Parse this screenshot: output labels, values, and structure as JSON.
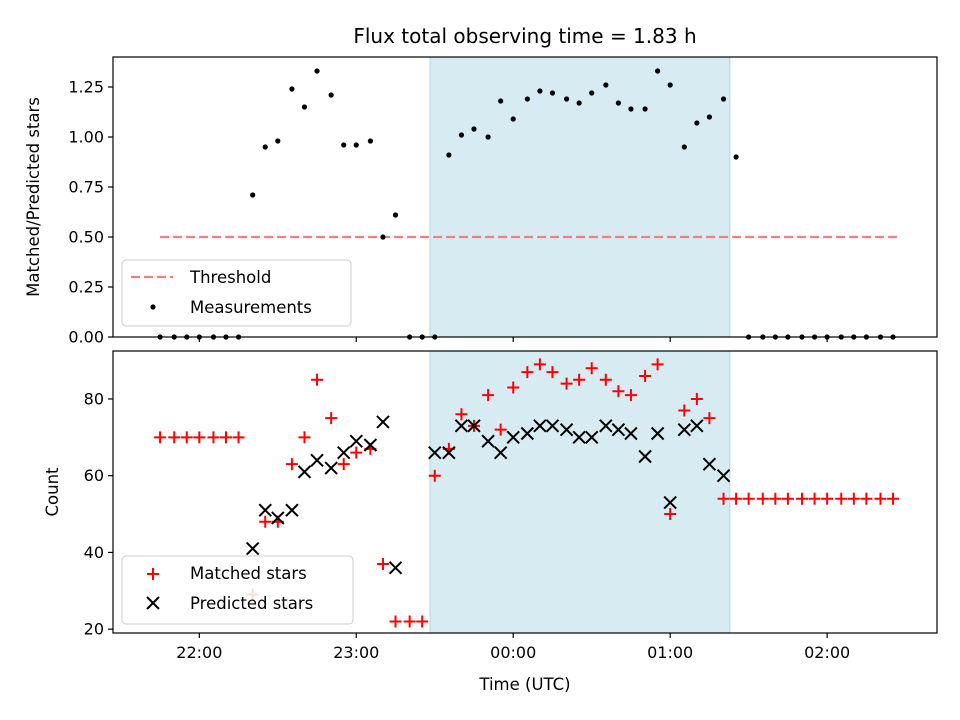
{
  "chart_data": {
    "title": "Flux total observing time = 1.83 h",
    "xlabel": "Time (UTC)",
    "x_unit": "hours UTC (values past 24 are after midnight)",
    "x_tick_labels": [
      "22:00",
      "23:00",
      "00:00",
      "01:00",
      "02:00"
    ],
    "xlim": [
      21.45,
      26.7
    ],
    "observing_window": {
      "start": 23.47,
      "end": 25.38,
      "color": "#add8e6"
    },
    "panels": [
      {
        "type": "scatter",
        "ylabel": "Matched/Predicted stars",
        "ylim": [
          0,
          1.4
        ],
        "y_tick_labels": [
          "0.00",
          "0.25",
          "0.50",
          "0.75",
          "1.00",
          "1.25"
        ],
        "legend_location": "lower-left",
        "threshold": {
          "name": "Threshold",
          "value": 0.5,
          "x_range": [
            21.75,
            26.45
          ],
          "color": "#f08080"
        },
        "series": [
          {
            "name": "Measurements",
            "color": "#000000",
            "marker": "dot",
            "x": [
              21.75,
              21.84,
              21.92,
              22.0,
              22.09,
              22.17,
              22.25,
              22.34,
              22.42,
              22.5,
              22.59,
              22.67,
              22.75,
              22.84,
              22.92,
              23.0,
              23.09,
              23.17,
              23.25,
              23.34,
              23.42,
              23.5,
              23.59,
              23.67,
              23.75,
              23.84,
              23.92,
              24.0,
              24.09,
              24.17,
              24.25,
              24.34,
              24.42,
              24.5,
              24.59,
              24.67,
              24.75,
              24.84,
              24.92,
              25.0,
              25.09,
              25.17,
              25.25,
              25.34,
              25.42,
              25.5,
              25.59,
              25.67,
              25.75,
              25.84,
              25.92,
              26.0,
              26.09,
              26.17,
              26.25,
              26.34,
              26.42
            ],
            "y": [
              0,
              0,
              0,
              0,
              0,
              0,
              0,
              0.71,
              0.95,
              0.98,
              1.24,
              1.15,
              1.33,
              1.21,
              0.96,
              0.96,
              0.98,
              0.5,
              0.61,
              0,
              0,
              0,
              0.91,
              1.01,
              1.04,
              1.0,
              1.18,
              1.09,
              1.19,
              1.23,
              1.22,
              1.19,
              1.17,
              1.22,
              1.26,
              1.17,
              1.14,
              1.14,
              1.33,
              1.26,
              0.95,
              1.07,
              1.1,
              1.19,
              0.9,
              0,
              0,
              0,
              0,
              0,
              0,
              0,
              0,
              0,
              0,
              0,
              0
            ]
          }
        ]
      },
      {
        "type": "scatter",
        "ylabel": "Count",
        "ylim": [
          19,
          92.5
        ],
        "y_tick_labels": [
          "20",
          "40",
          "60",
          "80"
        ],
        "legend_location": "lower-left",
        "series": [
          {
            "name": "Matched stars",
            "color": "#ff0000",
            "marker": "plus",
            "x": [
              21.75,
              21.84,
              21.92,
              22.0,
              22.09,
              22.17,
              22.25,
              22.34,
              22.42,
              22.5,
              22.59,
              22.67,
              22.75,
              22.84,
              22.92,
              23.0,
              23.09,
              23.17,
              23.25,
              23.34,
              23.42,
              23.5,
              23.59,
              23.67,
              23.75,
              23.84,
              23.92,
              24.0,
              24.09,
              24.17,
              24.25,
              24.34,
              24.42,
              24.5,
              24.59,
              24.67,
              24.75,
              24.84,
              24.92,
              25.0,
              25.09,
              25.17,
              25.25,
              25.34,
              25.42,
              25.5,
              25.59,
              25.67,
              25.75,
              25.84,
              25.92,
              26.0,
              26.09,
              26.17,
              26.25,
              26.34,
              26.42
            ],
            "y": [
              70,
              70,
              70,
              70,
              70,
              70,
              70,
              29,
              48,
              48,
              63,
              70,
              85,
              75,
              63,
              66,
              67,
              37,
              22,
              22,
              22,
              60,
              67,
              76,
              73,
              81,
              72,
              83,
              87,
              89,
              87,
              84,
              85,
              88,
              85,
              82,
              81,
              86,
              89,
              50,
              77,
              80,
              75,
              54,
              54,
              54,
              54,
              54,
              54,
              54,
              54,
              54,
              54,
              54,
              54,
              54,
              54
            ]
          },
          {
            "name": "Predicted stars",
            "color": "#000000",
            "marker": "x",
            "x": [
              22.34,
              22.42,
              22.5,
              22.59,
              22.67,
              22.75,
              22.84,
              22.92,
              23.0,
              23.09,
              23.17,
              23.25,
              23.5,
              23.59,
              23.67,
              23.75,
              23.84,
              23.92,
              24.0,
              24.09,
              24.17,
              24.25,
              24.34,
              24.42,
              24.5,
              24.59,
              24.67,
              24.75,
              24.84,
              24.92,
              25.0,
              25.09,
              25.17,
              25.25,
              25.34
            ],
            "y": [
              41,
              51,
              49,
              51,
              61,
              64,
              62,
              66,
              69,
              68,
              74,
              36,
              66,
              66,
              73,
              73,
              69,
              66,
              70,
              71,
              73,
              73,
              72,
              70,
              70,
              73,
              72,
              71,
              65,
              71,
              53,
              72,
              73,
              63,
              60
            ]
          }
        ]
      }
    ]
  }
}
